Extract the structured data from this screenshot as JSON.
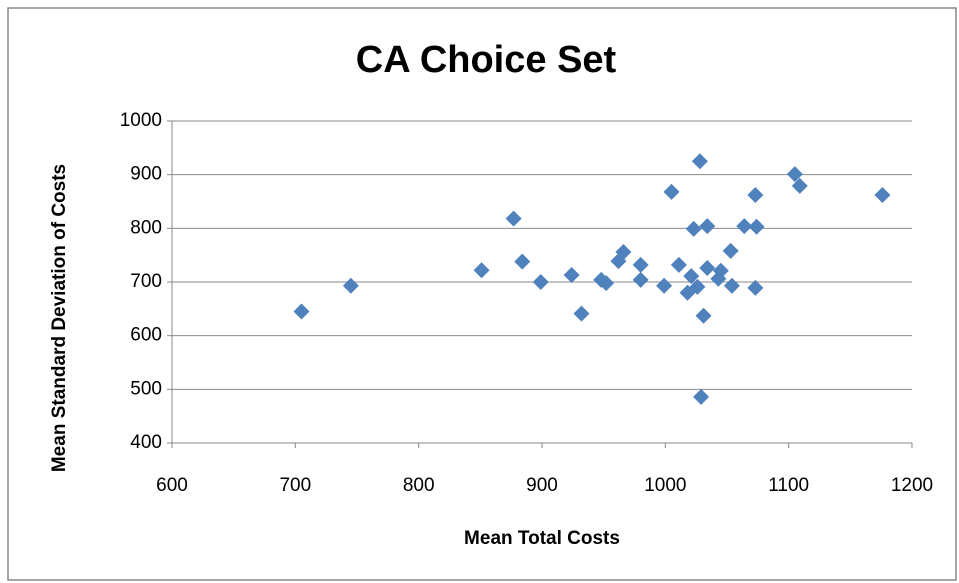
{
  "chart_data": {
    "type": "scatter",
    "title": "CA Choice Set",
    "xlabel": "Mean Total Costs",
    "ylabel": "Mean Standard Deviation of Costs",
    "color": "#4f81bd",
    "x": [
      705,
      745,
      851,
      877,
      884,
      899,
      924,
      932,
      948,
      952,
      962,
      966,
      980,
      980,
      999,
      1005,
      1011,
      1018,
      1021,
      1023,
      1026,
      1028,
      1029,
      1031,
      1034,
      1034,
      1043,
      1045,
      1054,
      1053,
      1064,
      1073,
      1073,
      1074,
      1105,
      1109,
      1176
    ],
    "values": [
      645,
      693,
      722,
      818,
      738,
      700,
      713,
      641,
      704,
      698,
      739,
      756,
      732,
      704,
      693,
      868,
      732,
      680,
      711,
      799,
      691,
      925,
      486,
      637,
      804,
      726,
      706,
      721,
      693,
      758,
      804,
      862,
      689,
      803,
      901,
      879,
      862
    ],
    "xlim": [
      600,
      1200
    ],
    "xticks": [
      600,
      700,
      800,
      900,
      1000,
      1100,
      1200
    ],
    "ylim": [
      400,
      1000
    ],
    "yticks": [
      400,
      500,
      600,
      700,
      800,
      900,
      1000
    ],
    "grid": true
  }
}
